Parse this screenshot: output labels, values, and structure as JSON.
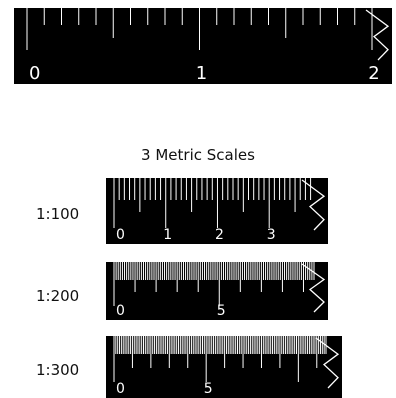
{
  "heading": "3 Metric Scales",
  "colors": {
    "ruler_background": "#000000",
    "marks": "#ffffff",
    "page": "#ffffff"
  },
  "icons": [
    "zigzag-end-icon"
  ],
  "rulers": [
    {
      "id": "big-ruler",
      "scale_label": "",
      "numbers": [
        {
          "value": 0,
          "text": "0"
        },
        {
          "value": 1,
          "text": "1"
        },
        {
          "value": 2,
          "text": "2"
        }
      ],
      "max_value": 2.0,
      "minor_step": 0.1,
      "mid_step": 0.5,
      "major_step": 1
    },
    {
      "id": "scale-100",
      "scale_label": "1:100",
      "numbers": [
        {
          "value": 0,
          "text": "0"
        },
        {
          "value": 1,
          "text": "1"
        },
        {
          "value": 2,
          "text": "2"
        },
        {
          "value": 3,
          "text": "3"
        }
      ],
      "max_value": 3.75,
      "minor_step": 0.1,
      "mid_step": 0.5,
      "major_step": 1
    },
    {
      "id": "scale-200",
      "scale_label": "1:200",
      "numbers": [
        {
          "value": 0,
          "text": "0"
        },
        {
          "value": 5,
          "text": "5"
        }
      ],
      "max_value": 9.5,
      "minor_step": 0.1,
      "mid_step": 1,
      "major_step": 5
    },
    {
      "id": "scale-300",
      "scale_label": "1:300",
      "numbers": [
        {
          "value": 0,
          "text": "0"
        },
        {
          "value": 5,
          "text": "5"
        }
      ],
      "max_value": 11.5,
      "minor_step": 0.1,
      "mid_step": 1,
      "major_step": 5
    }
  ]
}
